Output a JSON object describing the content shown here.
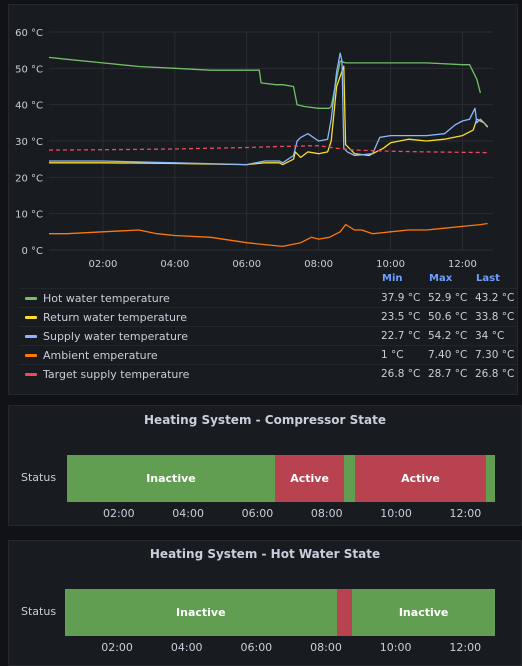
{
  "chart_data": {
    "type": "line",
    "ylim": [
      0,
      60
    ],
    "y_ticks": [
      "60 °C",
      "50 °C",
      "40 °C",
      "30 °C",
      "20 °C",
      "10 °C",
      "0 °C"
    ],
    "y_tick_values": [
      60,
      50,
      40,
      30,
      20,
      10,
      0
    ],
    "xlim": [
      0.5,
      12.85
    ],
    "x_ticks": [
      "02:00",
      "04:00",
      "06:00",
      "08:00",
      "10:00",
      "12:00"
    ],
    "x_tick_values": [
      2,
      4,
      6,
      8,
      10,
      12
    ],
    "grid": true,
    "series": [
      {
        "name": "Hot water temperature",
        "color": "#73bf69",
        "dash": false,
        "x": [
          0.5,
          1.0,
          2.0,
          3.0,
          4.0,
          5.0,
          6.0,
          6.35,
          6.4,
          6.8,
          7.0,
          7.3,
          7.4,
          7.6,
          8.0,
          8.3,
          8.35,
          8.6,
          8.75,
          9.0,
          10.0,
          11.0,
          12.0,
          12.2,
          12.4,
          12.5
        ],
        "values": [
          53.0,
          52.5,
          51.5,
          50.5,
          50.0,
          49.5,
          49.5,
          49.5,
          46.0,
          45.5,
          45.5,
          45.0,
          40.0,
          39.5,
          39.0,
          39.0,
          39.5,
          52.0,
          51.5,
          51.5,
          51.5,
          51.5,
          51.0,
          51.0,
          47.0,
          43.2
        ]
      },
      {
        "name": "Return water temperature",
        "color": "#fade2a",
        "dash": false,
        "x": [
          0.5,
          2.0,
          4.0,
          6.0,
          6.5,
          6.9,
          7.0,
          7.3,
          7.35,
          7.5,
          7.7,
          8.0,
          8.25,
          8.35,
          8.5,
          8.7,
          8.75,
          9.0,
          9.4,
          9.8,
          10.0,
          10.5,
          11.0,
          11.5,
          12.0,
          12.3,
          12.4,
          12.6,
          12.7
        ],
        "values": [
          24.0,
          24.0,
          23.8,
          23.5,
          24.0,
          24.0,
          23.5,
          25.0,
          27.0,
          25.5,
          27.0,
          26.5,
          27.0,
          30.0,
          45.0,
          50.6,
          29.0,
          26.5,
          26.0,
          28.0,
          29.5,
          30.5,
          30.0,
          30.5,
          31.5,
          33.0,
          36.0,
          35.0,
          33.8
        ]
      },
      {
        "name": "Supply water temperature",
        "color": "#8ab8ff",
        "dash": false,
        "x": [
          0.5,
          2.0,
          4.0,
          6.0,
          6.5,
          6.9,
          7.0,
          7.3,
          7.4,
          7.5,
          7.7,
          8.0,
          8.25,
          8.35,
          8.5,
          8.6,
          8.65,
          8.7,
          8.8,
          9.0,
          9.5,
          9.7,
          10.0,
          10.5,
          11.0,
          11.5,
          11.8,
          12.0,
          12.2,
          12.35,
          12.4,
          12.5,
          12.6,
          12.7
        ],
        "values": [
          24.5,
          24.5,
          24.0,
          23.5,
          24.5,
          24.5,
          24.0,
          26.0,
          30.0,
          31.0,
          32.0,
          30.0,
          30.5,
          36.0,
          49.0,
          54.2,
          52.0,
          28.0,
          27.0,
          26.0,
          26.5,
          31.0,
          31.5,
          31.5,
          31.5,
          32.0,
          34.5,
          35.5,
          36.0,
          39.0,
          35.0,
          36.0,
          35.0,
          34.0
        ]
      },
      {
        "name": "Ambient emperature",
        "color": "#ff780a",
        "dash": false,
        "x": [
          0.5,
          1.0,
          2.0,
          3.0,
          3.5,
          4.0,
          5.0,
          6.0,
          6.5,
          7.0,
          7.5,
          7.8,
          8.0,
          8.3,
          8.6,
          8.75,
          9.0,
          9.2,
          9.5,
          9.8,
          10.0,
          10.5,
          11.0,
          11.5,
          12.0,
          12.5,
          12.7
        ],
        "values": [
          4.5,
          4.5,
          5.0,
          5.5,
          4.5,
          4.0,
          3.5,
          2.0,
          1.5,
          1.0,
          2.0,
          3.5,
          3.0,
          3.5,
          5.0,
          7.0,
          5.5,
          5.5,
          4.5,
          4.8,
          5.0,
          5.5,
          5.5,
          6.0,
          6.5,
          7.0,
          7.3
        ]
      },
      {
        "name": "Target supply temperature",
        "color": "#f2495c",
        "dash": true,
        "x": [
          0.5,
          2.0,
          4.0,
          6.0,
          7.0,
          8.0,
          8.5,
          9.0,
          10.0,
          11.0,
          12.0,
          12.7
        ],
        "values": [
          27.5,
          27.6,
          27.8,
          28.2,
          28.5,
          28.7,
          28.0,
          27.5,
          27.2,
          27.0,
          26.9,
          26.8
        ]
      }
    ]
  },
  "legend": {
    "headers": {
      "min": "Min",
      "max": "Max",
      "last": "Last"
    },
    "rows": [
      {
        "name": "Hot water temperature",
        "color": "#73bf69",
        "min": "37.9 °C",
        "max": "52.9 °C",
        "last": "43.2 °C"
      },
      {
        "name": "Return water temperature",
        "color": "#fade2a",
        "min": "23.5 °C",
        "max": "50.6 °C",
        "last": "33.8 °C"
      },
      {
        "name": "Supply water temperature",
        "color": "#8ab8ff",
        "min": "22.7 °C",
        "max": "54.2 °C",
        "last": "34 °C"
      },
      {
        "name": "Ambient emperature",
        "color": "#ff780a",
        "min": "1 °C",
        "max": "7.40 °C",
        "last": "7.30 °C"
      },
      {
        "name": "Target supply temperature",
        "color": "#f2495c",
        "min": "26.8 °C",
        "max": "28.7 °C",
        "last": "26.8 °C"
      }
    ]
  },
  "compressor": {
    "title": "Heating System - Compressor State",
    "row_label": "Status",
    "xlim": [
      0.5,
      12.85
    ],
    "x_ticks": [
      "02:00",
      "04:00",
      "06:00",
      "08:00",
      "10:00",
      "12:00"
    ],
    "x_tick_values": [
      2,
      4,
      6,
      8,
      10,
      12
    ],
    "segments": [
      {
        "start": 0.5,
        "end": 6.5,
        "label": "Inactive",
        "color": "#629e51"
      },
      {
        "start": 6.5,
        "end": 8.5,
        "label": "Active",
        "color": "#b8424f"
      },
      {
        "start": 8.5,
        "end": 8.8,
        "label": "",
        "color": "#629e51"
      },
      {
        "start": 8.8,
        "end": 12.6,
        "label": "Active",
        "color": "#b8424f"
      },
      {
        "start": 12.6,
        "end": 12.85,
        "label": "",
        "color": "#629e51"
      }
    ]
  },
  "hotwater": {
    "title": "Heating System - Hot Water State",
    "row_label": "Status",
    "xlim": [
      0.5,
      12.85
    ],
    "x_ticks": [
      "02:00",
      "04:00",
      "06:00",
      "08:00",
      "10:00",
      "12:00"
    ],
    "x_tick_values": [
      2,
      4,
      6,
      8,
      10,
      12
    ],
    "segments": [
      {
        "start": 0.5,
        "end": 8.3,
        "label": "Inactive",
        "color": "#629e51"
      },
      {
        "start": 8.3,
        "end": 8.75,
        "label": "",
        "color": "#b8424f"
      },
      {
        "start": 8.75,
        "end": 12.85,
        "label": "Inactive",
        "color": "#629e51"
      }
    ]
  }
}
